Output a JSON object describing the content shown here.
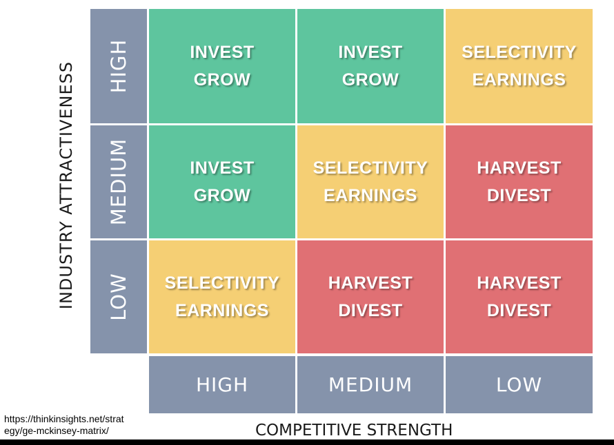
{
  "y_axis": {
    "label": "INDUSTRY ATTRACTIVENESS",
    "levels": [
      "HIGH",
      "MEDIUM",
      "LOW"
    ]
  },
  "x_axis": {
    "label": "COMPETITIVE STRENGTH",
    "levels": [
      "HIGH",
      "MEDIUM",
      "LOW"
    ]
  },
  "matrix": [
    [
      {
        "line1": "INVEST",
        "line2": "GROW",
        "color": "#5ec59e"
      },
      {
        "line1": "INVEST",
        "line2": "GROW",
        "color": "#5ec59e"
      },
      {
        "line1": "SELECTIVITY",
        "line2": "EARNINGS",
        "color": "#f5cf74"
      }
    ],
    [
      {
        "line1": "INVEST",
        "line2": "GROW",
        "color": "#5ec59e"
      },
      {
        "line1": "SELECTIVITY",
        "line2": "EARNINGS",
        "color": "#f5cf74"
      },
      {
        "line1": "HARVEST",
        "line2": "DIVEST",
        "color": "#e07074"
      }
    ],
    [
      {
        "line1": "SELECTIVITY",
        "line2": "EARNINGS",
        "color": "#f5cf74"
      },
      {
        "line1": "HARVEST",
        "line2": "DIVEST",
        "color": "#e07074"
      },
      {
        "line1": "HARVEST",
        "line2": "DIVEST",
        "color": "#e07074"
      }
    ]
  ],
  "header_color": "#8593ab",
  "source": "https://thinkinsights.net/strat\negy/ge-mckinsey-matrix/"
}
